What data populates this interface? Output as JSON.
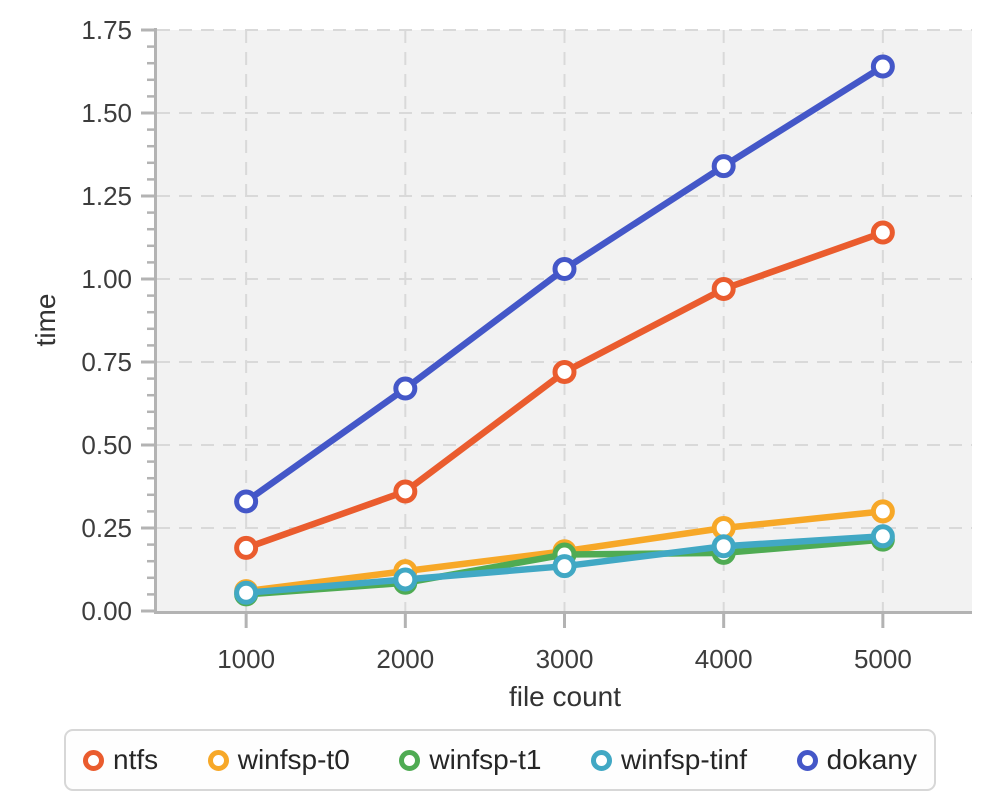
{
  "chart_data": {
    "type": "line",
    "title": "",
    "xlabel": "file count",
    "ylabel": "time",
    "x": [
      1000,
      2000,
      3000,
      4000,
      5000
    ],
    "series": [
      {
        "name": "ntfs",
        "color": "#ea5c2e",
        "values": [
          0.19,
          0.36,
          0.72,
          0.97,
          1.14
        ]
      },
      {
        "name": "winfsp-t0",
        "color": "#f7a828",
        "values": [
          0.06,
          0.12,
          0.18,
          0.25,
          0.3
        ]
      },
      {
        "name": "winfsp-t1",
        "color": "#4fab53",
        "values": [
          0.05,
          0.085,
          0.17,
          0.175,
          0.215
        ]
      },
      {
        "name": "winfsp-tinf",
        "color": "#41a8c4",
        "values": [
          0.055,
          0.095,
          0.135,
          0.195,
          0.225
        ]
      },
      {
        "name": "dokany",
        "color": "#4457c8",
        "values": [
          0.33,
          0.67,
          1.03,
          1.34,
          1.64
        ]
      }
    ],
    "xlim": [
      440,
      5560
    ],
    "ylim": [
      0,
      1.75
    ],
    "xticks": [
      1000,
      2000,
      3000,
      4000,
      5000
    ],
    "yticks": [
      0,
      0.25,
      0.5,
      0.75,
      1.0,
      1.25,
      1.5,
      1.75
    ],
    "y_minor_tick_step": 0.05,
    "grid": "dashed",
    "marker_style": "open-circle",
    "legend_position": "bottom",
    "colors": {
      "plot_background": "#f2f2f2",
      "grid_line": "#d9d9d9",
      "axis_line": "#b3b3b3",
      "tick_label": "#3d3d3d",
      "axis_label": "#333333",
      "legend_text": "#262626",
      "legend_border": "#d7d7d7",
      "page_background": "#ffffff"
    }
  }
}
